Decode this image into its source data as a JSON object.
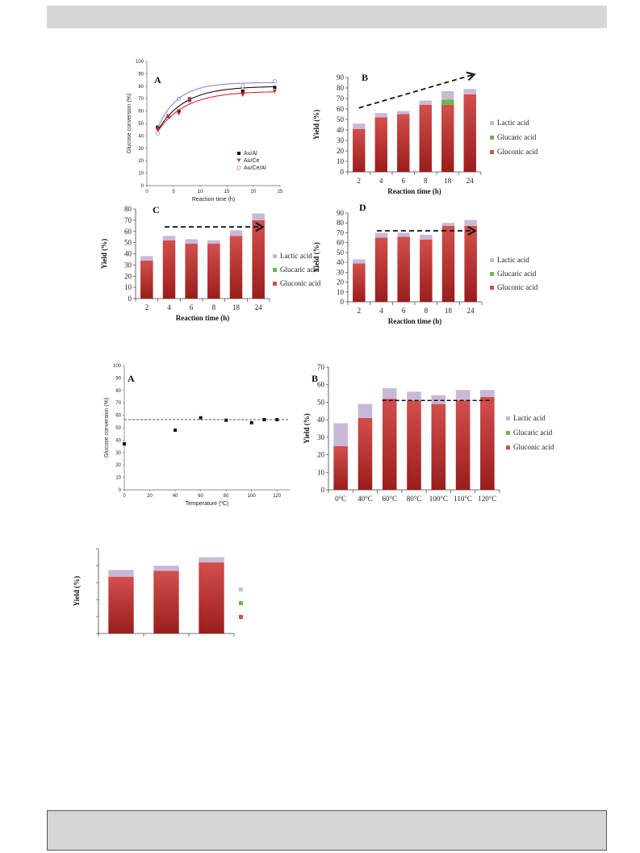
{
  "colors": {
    "gluconic_light": "#d24f4c",
    "gluconic_dark": "#9a1d1c",
    "glucaric": "#6fb54a",
    "lactic": "#c9b8d7",
    "au_al": "#111111",
    "au_ce": "#e0252b",
    "au_ce_al": "#8d84d6",
    "band": "#d6d6d6"
  },
  "chart_data": [
    {
      "id": "top-a",
      "type": "scatter",
      "panel": "A",
      "xlabel": "Reaction time (h)",
      "ylabel": "Glucose conversion (%)",
      "xlim": [
        0,
        25
      ],
      "ylim": [
        0,
        100
      ],
      "xticks": [
        0,
        5,
        10,
        15,
        20,
        25
      ],
      "yticks": [
        0,
        10,
        20,
        30,
        40,
        50,
        60,
        70,
        80,
        90,
        100
      ],
      "legend_position": "bottom-right",
      "series": [
        {
          "name": "Au/Al",
          "marker": "square",
          "x": [
            2,
            4,
            6,
            8,
            18,
            24
          ],
          "y": [
            47,
            56,
            60,
            69,
            76,
            79
          ],
          "fit": [
            -1.5,
            80,
            0.2
          ]
        },
        {
          "name": "Au/Ce",
          "marker": "triangle-down",
          "x": [
            2,
            4,
            6,
            8,
            18,
            24
          ],
          "y": [
            45,
            56,
            58,
            70,
            73,
            76
          ],
          "fit": [
            -1.5,
            76,
            0.19
          ]
        },
        {
          "name": "Au/Ce/Al",
          "marker": "circle-open",
          "x": [
            2,
            4,
            6,
            8,
            18,
            24
          ],
          "y": [
            42,
            55,
            70,
            68,
            80,
            84
          ],
          "fit": [
            -1.5,
            83,
            0.26
          ]
        }
      ]
    },
    {
      "id": "top-b",
      "type": "bar",
      "panel": "B",
      "xlabel": "Reaction time (h)",
      "ylabel": "Yield (%)",
      "categories": [
        "2",
        "4",
        "6",
        "8",
        "18",
        "24"
      ],
      "ylim": [
        0,
        90
      ],
      "yticks": [
        0,
        10,
        20,
        30,
        40,
        50,
        60,
        70,
        80,
        90
      ],
      "legend_position": "right",
      "series": [
        {
          "name": "Gluconic acid",
          "values": [
            41,
            52,
            55,
            64,
            64,
            74
          ]
        },
        {
          "name": "Glucaric acid",
          "values": [
            0,
            0,
            0,
            0,
            5,
            0
          ]
        },
        {
          "name": "Lactic acid",
          "values": [
            5,
            4,
            3,
            4,
            8,
            5
          ]
        }
      ],
      "arrow": {
        "type": "rising",
        "x1": 0,
        "y1": 61,
        "x2": 5.2,
        "y2": 93
      }
    },
    {
      "id": "top-c",
      "type": "bar",
      "panel": "C",
      "xlabel": "Reaction time (h)",
      "ylabel": "Yield (%)",
      "categories": [
        "2",
        "4",
        "6",
        "8",
        "18",
        "24"
      ],
      "ylim": [
        0,
        80
      ],
      "yticks": [
        0,
        10,
        20,
        30,
        40,
        50,
        60,
        70,
        80
      ],
      "legend_position": "right",
      "series": [
        {
          "name": "Gluconic acid",
          "values": [
            34,
            52,
            49,
            49,
            56,
            70
          ]
        },
        {
          "name": "Glucaric acid",
          "values": [
            0,
            0,
            0,
            0,
            0,
            0
          ]
        },
        {
          "name": "Lactic acid",
          "values": [
            4,
            4,
            4,
            3,
            5,
            6
          ]
        }
      ],
      "arrow": {
        "type": "flat",
        "x1": 0.8,
        "y1": 64,
        "x2": 5.2,
        "y2": 64
      }
    },
    {
      "id": "top-d",
      "type": "bar",
      "panel": "D",
      "xlabel": "Reaction time (h)",
      "ylabel": "Yield (%)",
      "categories": [
        "2",
        "4",
        "6",
        "8",
        "18",
        "24"
      ],
      "ylim": [
        0,
        90
      ],
      "yticks": [
        0,
        10,
        20,
        30,
        40,
        50,
        60,
        70,
        80,
        90
      ],
      "legend_position": "right",
      "series": [
        {
          "name": "Gluconic acid",
          "values": [
            39,
            65,
            66,
            63,
            77,
            77
          ]
        },
        {
          "name": "Glucaric acid",
          "values": [
            0,
            0,
            0,
            0,
            0,
            0
          ]
        },
        {
          "name": "Lactic acid",
          "values": [
            4,
            5,
            4,
            5,
            3,
            6
          ]
        }
      ],
      "arrow": {
        "type": "flat",
        "x1": 0.8,
        "y1": 72,
        "x2": 5.2,
        "y2": 72
      }
    },
    {
      "id": "mid-a",
      "type": "scatter",
      "panel": "A",
      "xlabel": "Temperature (ºC)",
      "ylabel": "Glucose conversion (%)",
      "xlim": [
        0,
        130
      ],
      "ylim": [
        0,
        100
      ],
      "xticks": [
        0,
        20,
        40,
        60,
        80,
        100,
        120
      ],
      "yticks": [
        0,
        10,
        20,
        30,
        40,
        50,
        60,
        70,
        80,
        90,
        100
      ],
      "reference_line": 56.5,
      "series": [
        {
          "name": "",
          "marker": "square",
          "x": [
            0,
            40,
            60,
            80,
            100,
            110,
            120
          ],
          "y": [
            37,
            48,
            58,
            56,
            54,
            56.5,
            56.5
          ]
        }
      ]
    },
    {
      "id": "mid-b",
      "type": "bar",
      "panel": "B",
      "ylabel": "Yield (%)",
      "categories": [
        "0°C",
        "40°C",
        "60°C",
        "80°C",
        "100°C",
        "110°C",
        "120°C"
      ],
      "ylim": [
        0,
        70
      ],
      "yticks": [
        0,
        10,
        20,
        30,
        40,
        50,
        60,
        70
      ],
      "legend_position": "right",
      "series": [
        {
          "name": "Gluconic acid",
          "values": [
            25,
            41,
            52,
            51,
            49,
            51,
            53
          ]
        },
        {
          "name": "Glucaric acid",
          "values": [
            0,
            0,
            0,
            0,
            0,
            0,
            0
          ]
        },
        {
          "name": "Lactic acid",
          "values": [
            13,
            8,
            6,
            5,
            5,
            6,
            4
          ]
        }
      ],
      "reference_line": {
        "value": 51,
        "from": 1.7,
        "to": 6.2
      }
    },
    {
      "id": "bottom",
      "type": "bar",
      "panel": "",
      "ylabel": "Yield (%)",
      "categories": [
        "",
        "",
        ""
      ],
      "ylim": [
        0,
        100
      ],
      "series": [
        {
          "name": "",
          "values": [
            67,
            74,
            84
          ]
        },
        {
          "name": "",
          "values": [
            0,
            0,
            0
          ]
        },
        {
          "name": "",
          "values": [
            8,
            6,
            6
          ]
        }
      ]
    }
  ]
}
